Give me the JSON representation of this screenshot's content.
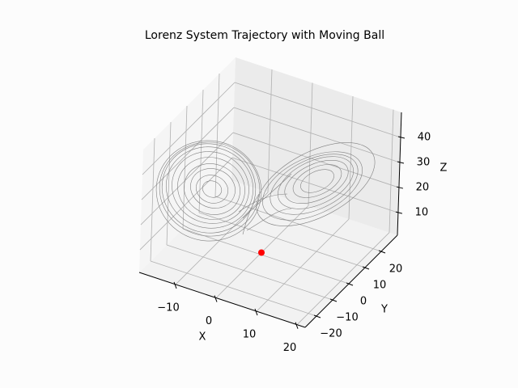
{
  "chart_data": {
    "type": "scatter3d",
    "title": "Lorenz System Trajectory with Moving Ball",
    "xlabel": "X",
    "ylabel": "Y",
    "zlabel": "Z",
    "xlim": [
      -19,
      22
    ],
    "ylim": [
      -27,
      30
    ],
    "zlim": [
      1,
      50
    ],
    "xticks": [
      {
        "value": -10,
        "label": "−10"
      },
      0,
      10,
      20
    ],
    "yticks": [
      {
        "value": -20,
        "label": "−20"
      },
      {
        "value": -10,
        "label": "−10"
      },
      0,
      10,
      20
    ],
    "zticks": [
      10,
      20,
      30,
      40
    ],
    "grid": true,
    "points": {
      "x": [
        0
      ],
      "y": [
        1
      ],
      "z": [
        1
      ],
      "color": "#ff0000"
    }
  }
}
